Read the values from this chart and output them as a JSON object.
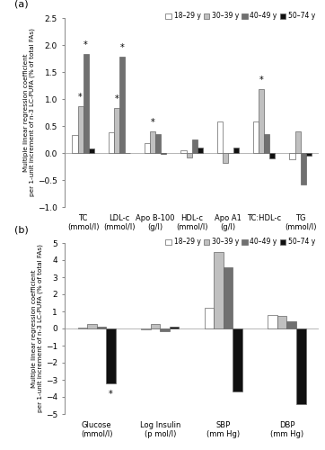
{
  "panel_a": {
    "categories": [
      "TC\n(mmol/l)",
      "LDL-c\n(mmol/l)",
      "Apo B-100\n(g/l)",
      "HDL-c\n(mmol/l)",
      "Apo A1\n(g/l)",
      "TC:HDL-c",
      "TG\n(mmol/l)"
    ],
    "values_18_29": [
      0.33,
      0.38,
      0.18,
      0.05,
      0.58,
      0.58,
      -0.12
    ],
    "values_30_39": [
      0.87,
      0.83,
      0.4,
      -0.08,
      -0.18,
      1.18,
      0.4
    ],
    "values_40_49": [
      1.83,
      1.78,
      0.35,
      0.25,
      0.0,
      0.35,
      -0.58
    ],
    "values_50_74": [
      0.08,
      0.0,
      -0.02,
      0.1,
      0.1,
      -0.1,
      -0.05
    ],
    "star_18_29": [
      false,
      false,
      false,
      false,
      false,
      false,
      false
    ],
    "star_30_39": [
      true,
      true,
      true,
      false,
      false,
      true,
      false
    ],
    "star_40_49": [
      true,
      true,
      false,
      false,
      false,
      false,
      false
    ],
    "star_50_74": [
      false,
      false,
      false,
      false,
      false,
      false,
      false
    ],
    "ylim": [
      -1.0,
      2.5
    ],
    "yticks": [
      -1.0,
      -0.5,
      0.0,
      0.5,
      1.0,
      1.5,
      2.0,
      2.5
    ],
    "ylabel": "Multiple linear regression coefficient\nper 1-unit increment of n-3 LC-PUFA (% of total FAs)"
  },
  "panel_b": {
    "categories": [
      "Glucose\n(mmol/l)",
      "Log Insulin\n(p mol/l)",
      "SBP\n(mm Hg)",
      "DBP\n(mm Hg)"
    ],
    "values_18_29": [
      0.05,
      -0.05,
      1.22,
      0.78
    ],
    "values_30_39": [
      0.28,
      0.28,
      4.48,
      0.75
    ],
    "values_40_49": [
      0.08,
      -0.18,
      3.58,
      0.4
    ],
    "values_50_74": [
      -3.2,
      0.1,
      -3.68,
      -4.42
    ],
    "star_18_29": [
      false,
      false,
      false,
      false
    ],
    "star_30_39": [
      false,
      false,
      false,
      false
    ],
    "star_40_49": [
      false,
      false,
      false,
      false
    ],
    "star_50_74": [
      true,
      false,
      false,
      false
    ],
    "ylim": [
      -5.0,
      5.0
    ],
    "yticks": [
      -5,
      -4,
      -3,
      -2,
      -1,
      0,
      1,
      2,
      3,
      4,
      5
    ],
    "ylabel": "Multiple linear regression coefficient\nper 1-unit increment of n-3 LC-PUFA (% of total FAs)"
  },
  "colors": {
    "18_29": "#ffffff",
    "30_39": "#c0c0c0",
    "40_49": "#707070",
    "50_74": "#101010"
  },
  "edge_color": "#666666",
  "legend_labels": [
    "18–29 y",
    "30–39 y",
    "40–49 y",
    "50–74 y"
  ],
  "bar_width": 0.15,
  "fig_label_a": "(a)",
  "fig_label_b": "(b)"
}
